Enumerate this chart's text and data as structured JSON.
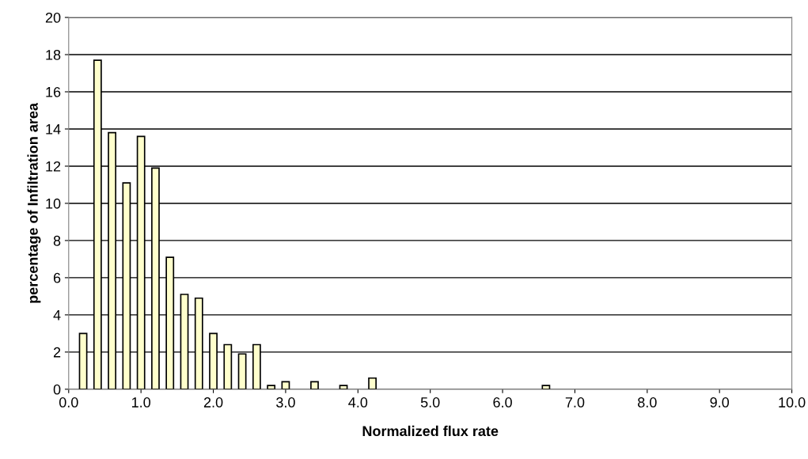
{
  "chart_data": {
    "type": "bar",
    "xlabel": "Normalized flux rate",
    "ylabel": "percentage of Infiltration area",
    "x": [
      0.2,
      0.4,
      0.6,
      0.8,
      1.0,
      1.2,
      1.4,
      1.6,
      1.8,
      2.0,
      2.2,
      2.4,
      2.6,
      2.8,
      3.0,
      3.4,
      3.8,
      4.2,
      6.6
    ],
    "values": [
      3.0,
      17.7,
      13.8,
      11.1,
      13.6,
      11.9,
      7.1,
      5.1,
      4.9,
      3.0,
      2.4,
      1.9,
      2.4,
      0.2,
      0.4,
      0.4,
      0.2,
      0.6,
      0.2
    ],
    "color": "#ffffcc",
    "xlim": [
      0,
      10
    ],
    "xticks": [
      {
        "value": 0,
        "label": "0.0"
      },
      {
        "value": 1,
        "label": "1.0"
      },
      {
        "value": 2,
        "label": "2.0"
      },
      {
        "value": 3,
        "label": "3.0"
      },
      {
        "value": 4,
        "label": "4.0"
      },
      {
        "value": 5,
        "label": "5.0"
      },
      {
        "value": 6,
        "label": "6.0"
      },
      {
        "value": 7,
        "label": "7.0"
      },
      {
        "value": 8,
        "label": "8.0"
      },
      {
        "value": 9,
        "label": "9.0"
      },
      {
        "value": 10,
        "label": "10.0"
      }
    ],
    "ylim": [
      0,
      20
    ],
    "yticks": [
      0,
      2,
      4,
      6,
      8,
      10,
      12,
      14,
      16,
      18,
      20
    ],
    "grid": "y",
    "legend": false
  }
}
